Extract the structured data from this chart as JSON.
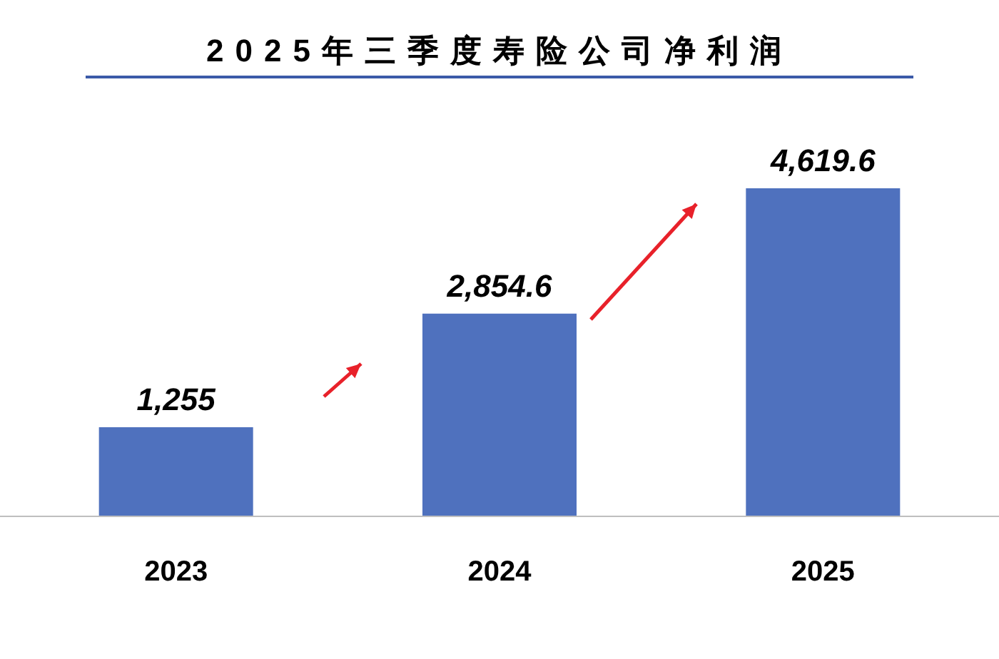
{
  "chart_data": {
    "type": "bar",
    "title": "2025年三季度寿险公司净利润",
    "categories": [
      "2023",
      "2024",
      "2025"
    ],
    "values": [
      1255,
      2854.6,
      4619.6
    ],
    "value_labels": [
      "1,255",
      "2,854.6",
      "4,619.6"
    ],
    "color": "#4f71be"
  }
}
